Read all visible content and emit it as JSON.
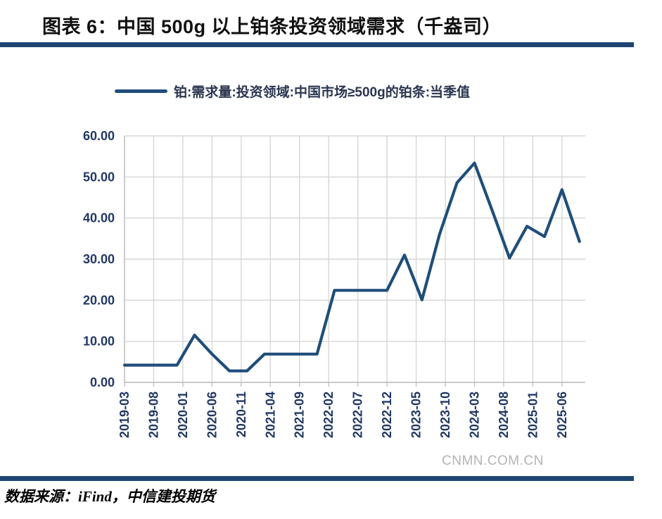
{
  "header": {
    "title": "图表 6：中国 500g 以上铂条投资领域需求（千盎司）"
  },
  "chart_data": {
    "type": "line",
    "legend_label": "铂:需求量:投资领域:中国市场≥500g的铂条:当季值",
    "ylim": [
      0,
      60
    ],
    "y_tick_step": 10,
    "y_tick_labels": [
      "0.00",
      "10.00",
      "20.00",
      "30.00",
      "40.00",
      "50.00",
      "60.00"
    ],
    "x_tick_labels": [
      "2019-03",
      "2019-08",
      "2020-01",
      "2020-06",
      "2020-11",
      "2021-04",
      "2021-09",
      "2022-02",
      "2022-07",
      "2022-12",
      "2023-05",
      "2023-10",
      "2024-03",
      "2024-08",
      "2025-01",
      "2025-06"
    ],
    "x_tick_interval_months": 5,
    "x_domain_months": [
      0,
      79
    ],
    "grid": true,
    "legend_position": "top",
    "line_color": "#1f4e79",
    "grid_color": "#d6d6d6",
    "axis_color": "#bfbfbf",
    "label_color": "#203864",
    "points": [
      {
        "date": "2019-03",
        "value": 4.2
      },
      {
        "date": "2019-06",
        "value": 4.2
      },
      {
        "date": "2019-09",
        "value": 4.2
      },
      {
        "date": "2019-12",
        "value": 4.2
      },
      {
        "date": "2020-03",
        "value": 11.5
      },
      {
        "date": "2020-06",
        "value": 6.9
      },
      {
        "date": "2020-09",
        "value": 2.8
      },
      {
        "date": "2020-12",
        "value": 2.8
      },
      {
        "date": "2021-03",
        "value": 6.9
      },
      {
        "date": "2021-06",
        "value": 6.9
      },
      {
        "date": "2021-09",
        "value": 6.9
      },
      {
        "date": "2021-12",
        "value": 6.9
      },
      {
        "date": "2022-03",
        "value": 22.4
      },
      {
        "date": "2022-06",
        "value": 22.4
      },
      {
        "date": "2022-09",
        "value": 22.4
      },
      {
        "date": "2022-12",
        "value": 22.4
      },
      {
        "date": "2023-03",
        "value": 31.0
      },
      {
        "date": "2023-06",
        "value": 20.1
      },
      {
        "date": "2023-09",
        "value": 36.0
      },
      {
        "date": "2023-12",
        "value": 48.6
      },
      {
        "date": "2024-03",
        "value": 53.4
      },
      {
        "date": "2024-06",
        "value": 42.0
      },
      {
        "date": "2024-09",
        "value": 30.3
      },
      {
        "date": "2024-12",
        "value": 38.0
      },
      {
        "date": "2025-03",
        "value": 35.5
      },
      {
        "date": "2025-06",
        "value": 46.9
      },
      {
        "date": "2025-09",
        "value": 34.3
      }
    ]
  },
  "watermark": {
    "text": "CNMN.COM.CN"
  },
  "footer": {
    "source": "数据来源：iFind，中信建投期货"
  },
  "colors": {
    "divider": "#1e4572",
    "title_text": "#101010",
    "legend_text": "#2a3550",
    "watermark_text": "#b4b4b4"
  }
}
